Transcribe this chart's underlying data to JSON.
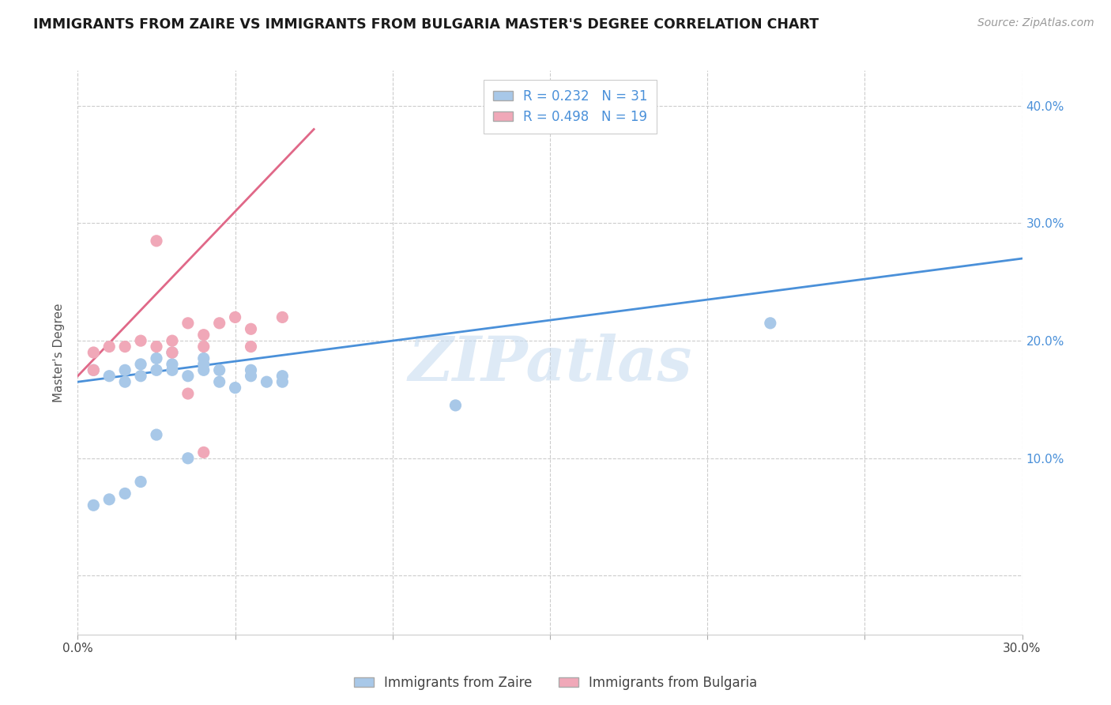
{
  "title": "IMMIGRANTS FROM ZAIRE VS IMMIGRANTS FROM BULGARIA MASTER'S DEGREE CORRELATION CHART",
  "source": "Source: ZipAtlas.com",
  "ylabel": "Master's Degree",
  "xlim": [
    0.0,
    0.3
  ],
  "ylim": [
    -0.05,
    0.43
  ],
  "xtick_positions": [
    0.0,
    0.05,
    0.1,
    0.15,
    0.2,
    0.25,
    0.3
  ],
  "xtick_labels": [
    "0.0%",
    "",
    "",
    "",
    "",
    "",
    "30.0%"
  ],
  "ytick_positions": [
    0.0,
    0.1,
    0.2,
    0.3,
    0.4
  ],
  "ytick_labels": [
    "",
    "10.0%",
    "20.0%",
    "30.0%",
    "40.0%"
  ],
  "zaire_R": 0.232,
  "zaire_N": 31,
  "bulgaria_R": 0.498,
  "bulgaria_N": 19,
  "zaire_color": "#a8c8e8",
  "bulgaria_color": "#f0a8b8",
  "zaire_line_color": "#4a90d9",
  "bulgaria_line_color": "#e06888",
  "watermark": "ZIPatlas",
  "zaire_x": [
    0.005,
    0.01,
    0.015,
    0.015,
    0.02,
    0.02,
    0.025,
    0.025,
    0.03,
    0.03,
    0.03,
    0.035,
    0.04,
    0.04,
    0.04,
    0.045,
    0.045,
    0.05,
    0.055,
    0.055,
    0.06,
    0.065,
    0.005,
    0.01,
    0.015,
    0.02,
    0.025,
    0.035,
    0.12,
    0.22,
    0.065
  ],
  "zaire_y": [
    0.175,
    0.17,
    0.175,
    0.165,
    0.18,
    0.17,
    0.185,
    0.175,
    0.19,
    0.18,
    0.175,
    0.17,
    0.185,
    0.18,
    0.175,
    0.175,
    0.165,
    0.16,
    0.175,
    0.17,
    0.165,
    0.17,
    0.06,
    0.065,
    0.07,
    0.08,
    0.12,
    0.1,
    0.145,
    0.215,
    0.165
  ],
  "bulgaria_x": [
    0.005,
    0.005,
    0.01,
    0.015,
    0.02,
    0.025,
    0.03,
    0.03,
    0.035,
    0.04,
    0.04,
    0.045,
    0.05,
    0.055,
    0.055,
    0.065,
    0.025,
    0.035,
    0.04
  ],
  "bulgaria_y": [
    0.19,
    0.175,
    0.195,
    0.195,
    0.2,
    0.195,
    0.2,
    0.19,
    0.215,
    0.205,
    0.195,
    0.215,
    0.22,
    0.21,
    0.195,
    0.22,
    0.285,
    0.155,
    0.105
  ],
  "zaire_line_x0": 0.0,
  "zaire_line_x1": 0.3,
  "zaire_line_y0": 0.165,
  "zaire_line_y1": 0.27,
  "bulgaria_line_x0": 0.0,
  "bulgaria_line_x1": 0.075,
  "bulgaria_line_y0": 0.17,
  "bulgaria_line_y1": 0.38,
  "bottom_legend_labels": [
    "Immigrants from Zaire",
    "Immigrants from Bulgaria"
  ]
}
